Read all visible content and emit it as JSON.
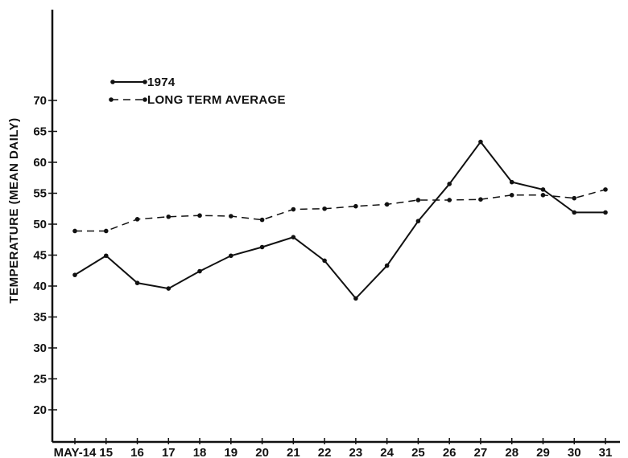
{
  "chart_data": {
    "type": "line",
    "title": "",
    "xlabel": "",
    "ylabel": "TEMPERATURE  (MEAN DAILY)",
    "x_tick_labels": [
      "MAY-14",
      "15",
      "16",
      "17",
      "18",
      "19",
      "20",
      "21",
      "22",
      "23",
      "24",
      "25",
      "26",
      "27",
      "28",
      "29",
      "30",
      "31"
    ],
    "x": [
      14,
      15,
      16,
      17,
      18,
      19,
      20,
      21,
      22,
      23,
      24,
      25,
      26,
      27,
      28,
      29,
      30,
      31
    ],
    "y_ticks": [
      20,
      25,
      30,
      35,
      40,
      45,
      50,
      55,
      60,
      65,
      70
    ],
    "ylim": [
      15,
      77
    ],
    "grid": false,
    "legend_position": "top-left",
    "series": [
      {
        "name": "1974",
        "style": "solid",
        "values": [
          41.8,
          44.9,
          40.5,
          39.6,
          42.4,
          44.9,
          46.3,
          47.9,
          44.1,
          38.0,
          43.3,
          50.5,
          56.5,
          63.3,
          56.8,
          55.6,
          51.9,
          51.9
        ]
      },
      {
        "name": "LONG TERM AVERAGE",
        "style": "dashed",
        "values": [
          48.9,
          48.9,
          50.8,
          51.2,
          51.4,
          51.3,
          50.7,
          52.4,
          52.5,
          52.9,
          53.2,
          53.9,
          53.9,
          54.0,
          54.7,
          54.7,
          54.2,
          55.6
        ]
      }
    ]
  }
}
